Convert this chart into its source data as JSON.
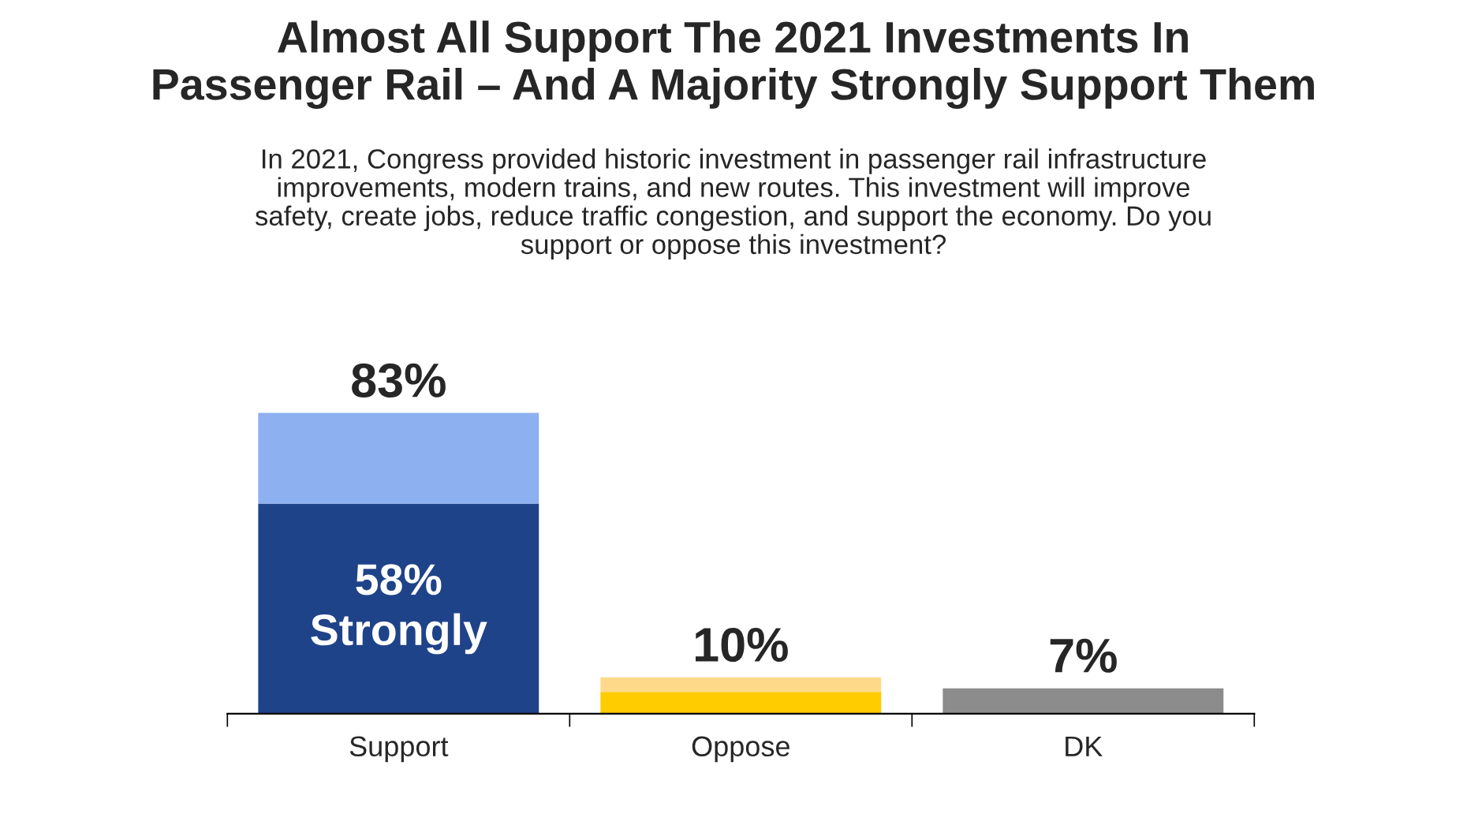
{
  "chart_data": {
    "type": "bar",
    "stacked": true,
    "title": "Almost All Support The 2021 Investments In\nPassenger Rail – And A Majority Strongly Support Them",
    "subtitle": "In 2021, Congress provided historic investment in passenger rail infrastructure\nimprovements, modern trains, and new routes. This investment will improve\nsafety, create jobs, reduce traffic congestion, and support the economy. Do you\nsupport or oppose this investment?",
    "categories": [
      "Support",
      "Oppose",
      "DK"
    ],
    "series": [
      {
        "colors": [
          "#1f4388",
          "#ffcc00",
          "#8c8c8c"
        ],
        "values": [
          58,
          6,
          7
        ],
        "value_labels": [
          "58%\nStrongly",
          null,
          null
        ]
      },
      {
        "colors": [
          "#8db0f0",
          "#ffd98a",
          null
        ],
        "values": [
          25,
          4,
          null
        ]
      }
    ],
    "totals": [
      "83%",
      "10%",
      "7%"
    ],
    "grid": false,
    "legend": false
  }
}
